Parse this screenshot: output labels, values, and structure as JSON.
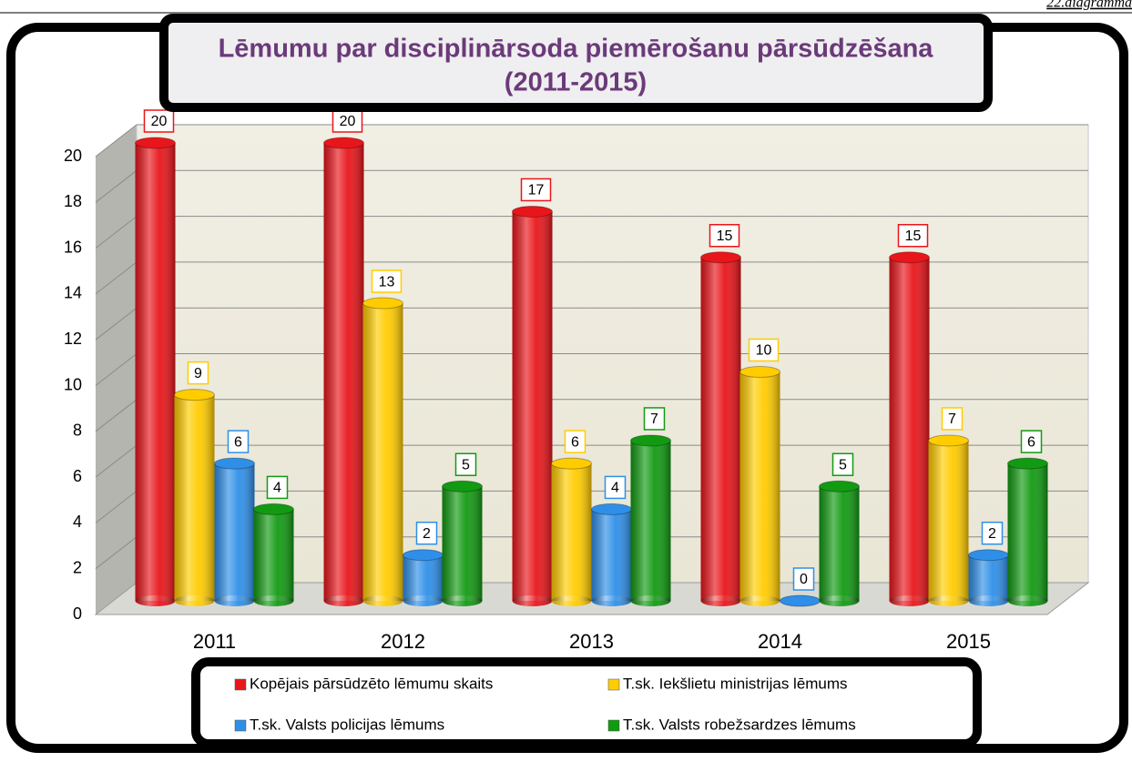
{
  "chart_data": {
    "type": "bar",
    "title": "Lēmumu par disciplinārsoda piemērošanu pārsūdzēšana",
    "subtitle": "(2011-2015)",
    "annotation": "22.diagramma",
    "categories": [
      "2011",
      "2012",
      "2013",
      "2014",
      "2015"
    ],
    "series": [
      {
        "name": "Kopējais pārsūdzēto lēmumu skaits",
        "color": "#e8161b",
        "values": [
          20,
          20,
          17,
          15,
          15
        ]
      },
      {
        "name": "T.sk. Iekšlietu ministrijas lēmums",
        "color": "#ffcc00",
        "values": [
          9,
          13,
          6,
          10,
          7
        ]
      },
      {
        "name": "T.sk. Valsts policijas lēmums",
        "color": "#2f8fe8",
        "values": [
          6,
          2,
          4,
          0,
          2
        ]
      },
      {
        "name": "T.sk. Valsts robežsardzes lēmums",
        "color": "#129a12",
        "values": [
          4,
          5,
          7,
          5,
          6
        ]
      }
    ],
    "ylim": [
      0,
      20
    ],
    "yticks": [
      0,
      2,
      4,
      6,
      8,
      10,
      12,
      14,
      16,
      18,
      20
    ],
    "grid": true
  }
}
